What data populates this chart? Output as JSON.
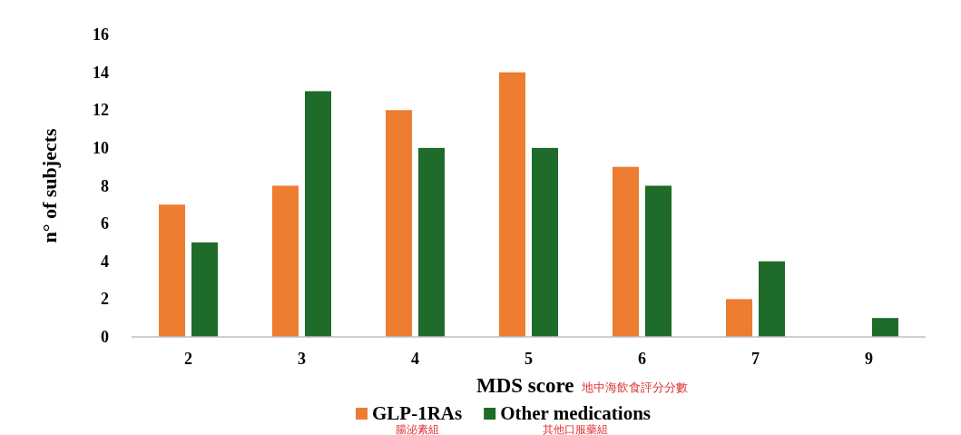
{
  "chart_data": {
    "type": "bar",
    "xlabel": "MDS score",
    "ylabel": "n° of subjects",
    "categories": [
      "2",
      "3",
      "4",
      "5",
      "6",
      "7",
      "9"
    ],
    "series": [
      {
        "name": "GLP-1RAs",
        "color": "#ed7d31",
        "values": [
          7,
          8,
          12,
          14,
          9,
          2,
          null
        ]
      },
      {
        "name": "Other medications",
        "color": "#1e6b2a",
        "values": [
          5,
          13,
          10,
          10,
          8,
          4,
          1
        ]
      }
    ],
    "ylim": [
      0,
      16
    ],
    "yticks": [
      0,
      2,
      4,
      6,
      8,
      10,
      12,
      14,
      16
    ],
    "grid": false,
    "legend": "bottom",
    "annotations": [
      "地中海飲食評分分數",
      "腸泌素組",
      "其他口服藥組"
    ]
  }
}
